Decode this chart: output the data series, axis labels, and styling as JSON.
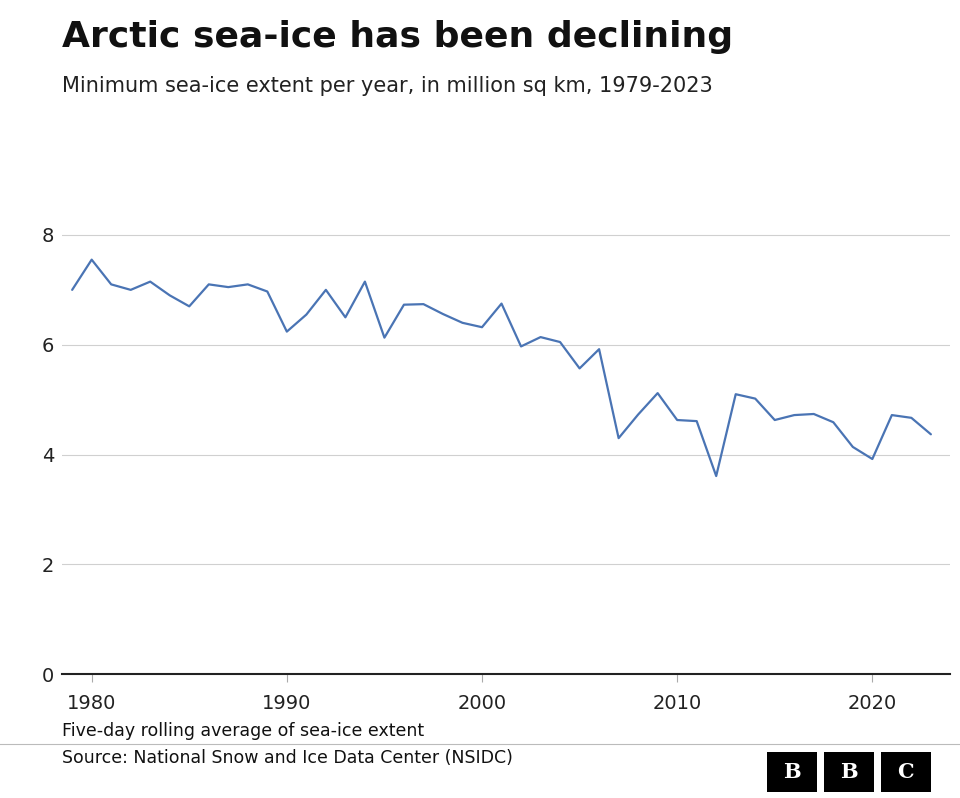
{
  "title": "Arctic sea-ice has been declining",
  "subtitle": "Minimum sea-ice extent per year, in million sq km, 1979-2023",
  "footer_note": "Five-day rolling average of sea-ice extent",
  "footer_source": "Source: National Snow and Ice Data Center (NSIDC)",
  "line_color": "#4a74b4",
  "background_color": "#ffffff",
  "years": [
    1979,
    1980,
    1981,
    1982,
    1983,
    1984,
    1985,
    1986,
    1987,
    1988,
    1989,
    1990,
    1991,
    1992,
    1993,
    1994,
    1995,
    1996,
    1997,
    1998,
    1999,
    2000,
    2001,
    2002,
    2003,
    2004,
    2005,
    2006,
    2007,
    2008,
    2009,
    2010,
    2011,
    2012,
    2013,
    2014,
    2015,
    2016,
    2017,
    2018,
    2019,
    2020,
    2021,
    2022,
    2023
  ],
  "values": [
    7.0,
    7.55,
    7.1,
    7.0,
    7.15,
    6.9,
    6.7,
    7.1,
    7.05,
    7.1,
    6.97,
    6.24,
    6.55,
    7.0,
    6.5,
    7.15,
    6.13,
    6.73,
    6.74,
    6.56,
    6.4,
    6.32,
    6.75,
    5.97,
    6.14,
    6.05,
    5.57,
    5.92,
    4.3,
    4.73,
    5.12,
    4.63,
    4.61,
    3.61,
    5.1,
    5.02,
    4.63,
    4.72,
    4.74,
    4.59,
    4.14,
    3.92,
    4.72,
    4.67,
    4.37
  ],
  "ylim": [
    0,
    8.5
  ],
  "yticks": [
    0,
    2,
    4,
    6,
    8
  ],
  "xticks": [
    1980,
    1990,
    2000,
    2010,
    2020
  ],
  "xlim": [
    1978.5,
    2024
  ],
  "grid_color": "#d0d0d0",
  "title_fontsize": 26,
  "subtitle_fontsize": 15,
  "tick_fontsize": 14,
  "footer_fontsize": 12.5,
  "line_width": 1.6
}
